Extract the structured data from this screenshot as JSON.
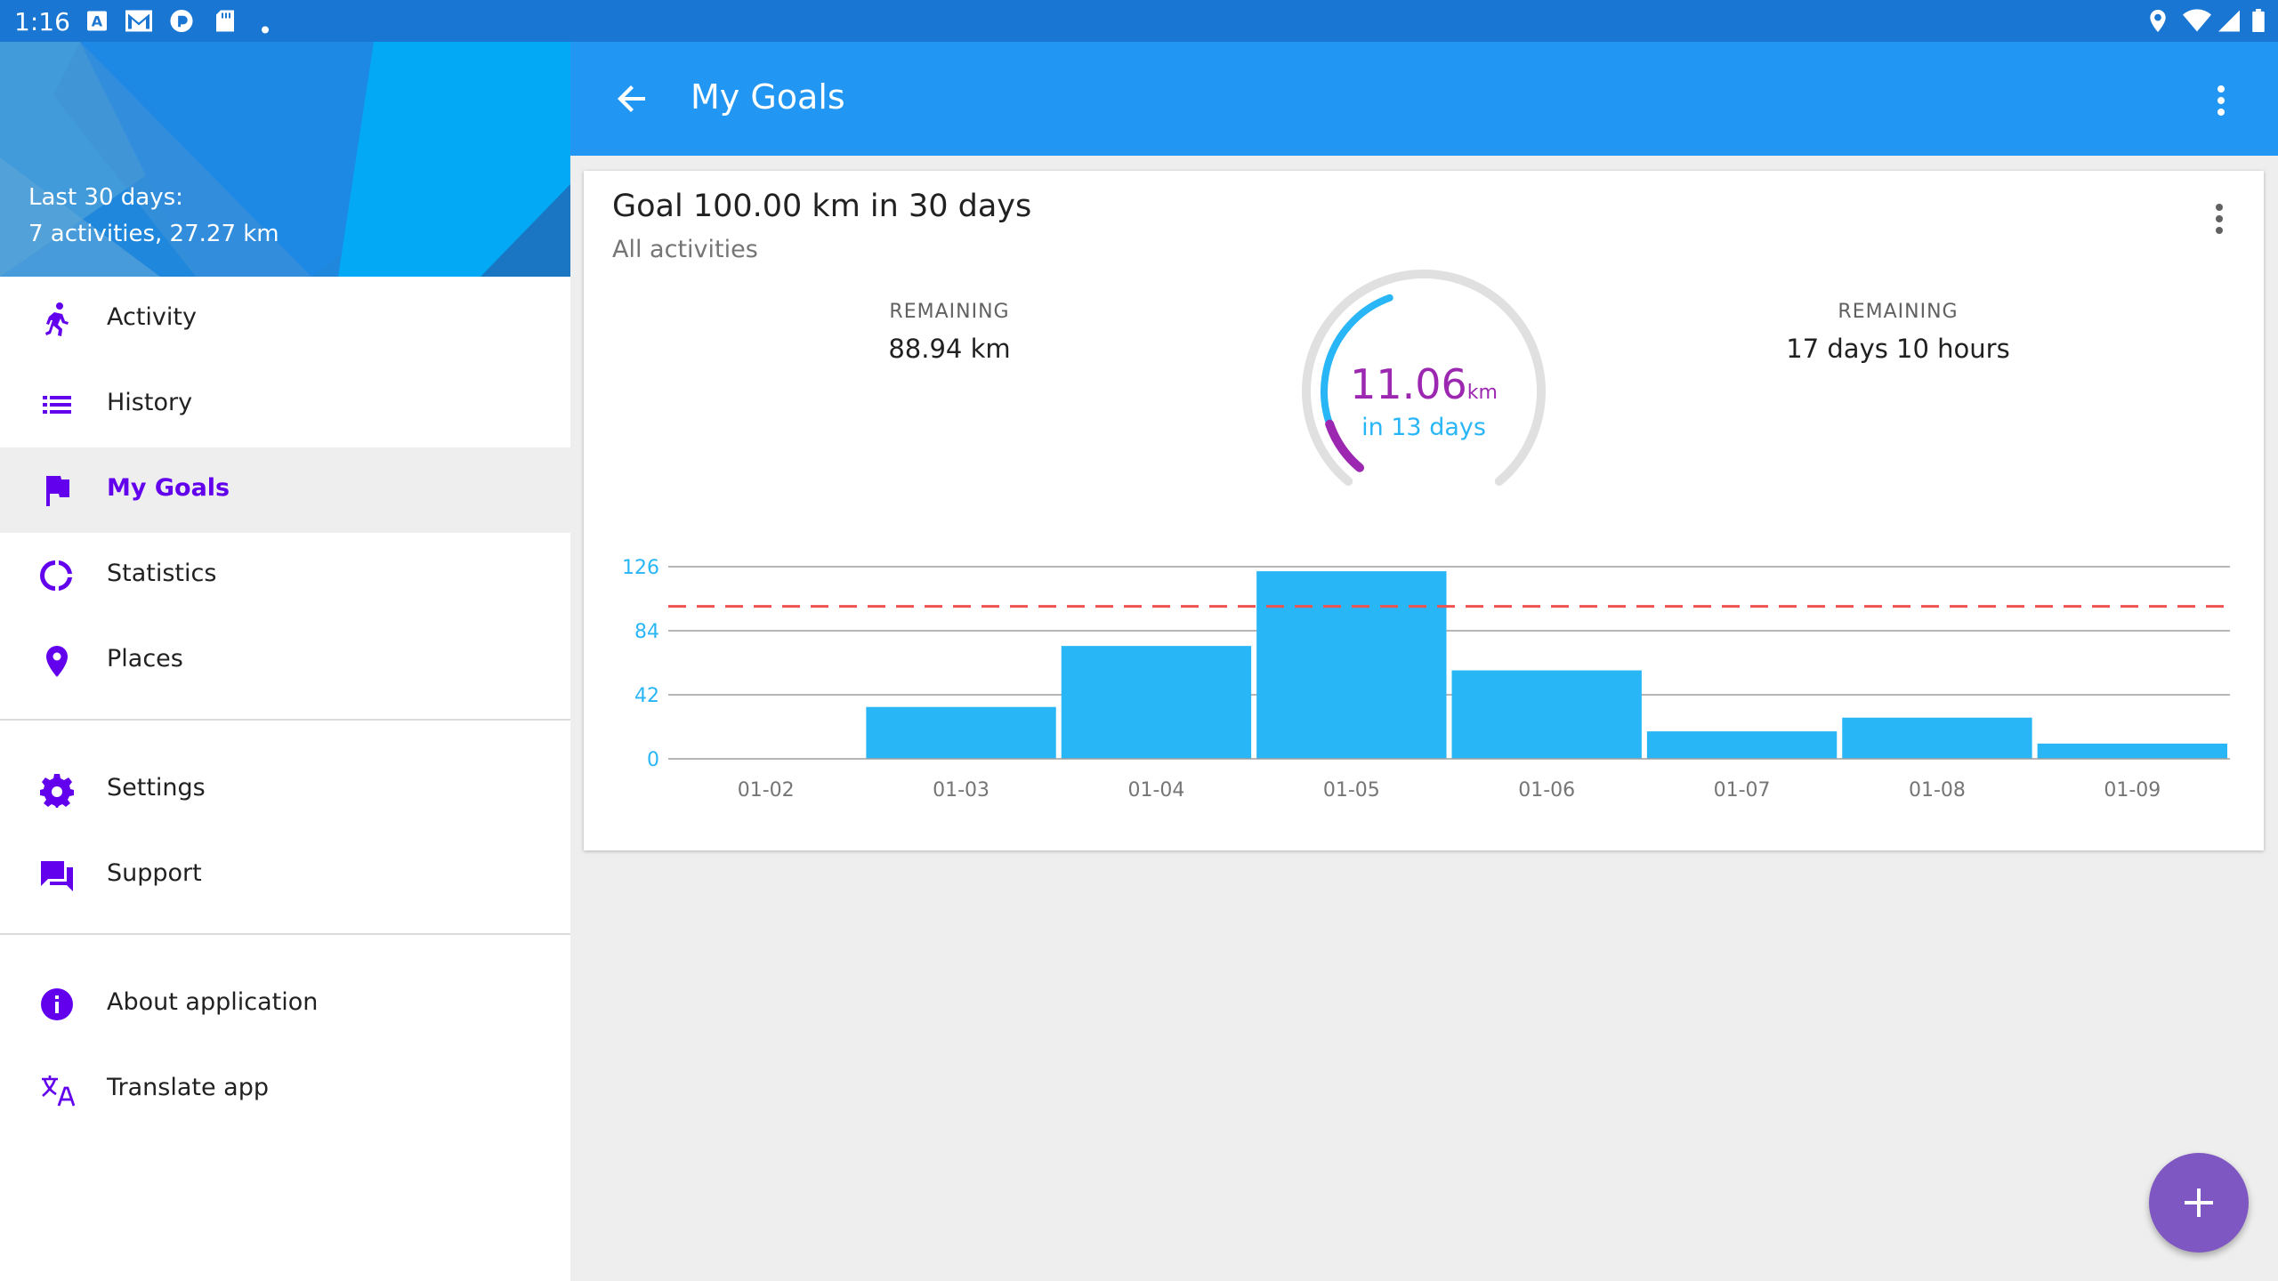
{
  "status_bar": {
    "time": "1:16",
    "left_icons": [
      "a-app-icon",
      "mail-icon",
      "pocket-casts-icon",
      "sd-card-icon",
      "dot-icon"
    ],
    "right_icons": [
      "location-icon",
      "wifi-icon",
      "signal-icon",
      "battery-icon"
    ]
  },
  "drawer": {
    "summary_line1": "Last 30 days:",
    "summary_line2": "7 activities, 27.27 km",
    "items": [
      {
        "label": "Activity",
        "icon": "run-icon"
      },
      {
        "label": "History",
        "icon": "list-icon"
      },
      {
        "label": "My Goals",
        "icon": "flag-icon",
        "selected": true
      },
      {
        "label": "Statistics",
        "icon": "donut-icon"
      },
      {
        "label": "Places",
        "icon": "place-icon"
      },
      {
        "label": "Settings",
        "icon": "gear-icon"
      },
      {
        "label": "Support",
        "icon": "forum-icon"
      },
      {
        "label": "About application",
        "icon": "info-icon"
      },
      {
        "label": "Translate app",
        "icon": "translate-icon"
      }
    ],
    "accent": "#6200EE"
  },
  "toolbar": {
    "title": "My Goals",
    "color": "#2196F3"
  },
  "goal_card": {
    "title": "Goal 100.00 km in 30 days",
    "subtitle": "All activities",
    "remaining_distance_label": "REMAINING",
    "remaining_distance": "88.94 km",
    "remaining_time_label": "REMAINING",
    "remaining_time": "17 days 10 hours",
    "gauge_value": "11.06",
    "gauge_unit": "km",
    "gauge_caption": "in 13 days",
    "gauge_progress_fraction": 0.11
  },
  "chart_data": {
    "type": "bar",
    "categories": [
      "01-02",
      "01-03",
      "01-04",
      "01-05",
      "01-06",
      "01-07",
      "01-08",
      "01-09"
    ],
    "values": [
      0,
      34,
      74,
      123,
      58,
      18,
      27,
      10
    ],
    "yticks": [
      0,
      42,
      84,
      126
    ],
    "ylim": [
      0,
      126
    ],
    "target_line": 100,
    "bar_color": "#29B6F6",
    "target_color": "#EF5350",
    "grid": true
  },
  "fab": {
    "icon": "plus-icon",
    "color": "#7E57C2"
  }
}
